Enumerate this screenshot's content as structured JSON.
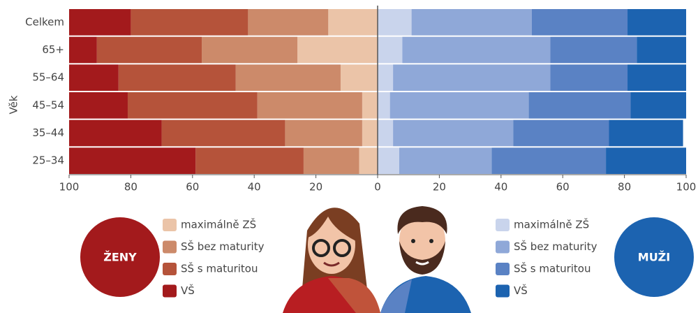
{
  "chart_data": {
    "type": "butterfly-stacked-bar",
    "y_label": "Věk",
    "categories": [
      "Celkem",
      "65+",
      "55–64",
      "45–54",
      "35–44",
      "25–34"
    ],
    "xlim": [
      0,
      100
    ],
    "xticks": [
      0,
      20,
      40,
      60,
      80,
      100
    ],
    "groups": [
      {
        "name": "ŽENY",
        "color": "#a31a1c",
        "side": "left",
        "series": [
          {
            "name": "maximálně ZŠ",
            "color": "#ebc4a8",
            "values": [
              16,
              26,
              12,
              5,
              5,
              6
            ]
          },
          {
            "name": "SŠ bez maturity",
            "color": "#cc8a6a",
            "values": [
              26,
              31,
              34,
              34,
              25,
              18
            ]
          },
          {
            "name": "SŠ s maturitou",
            "color": "#b5533a",
            "values": [
              38,
              34,
              38,
              42,
              40,
              35
            ]
          },
          {
            "name": "VŠ",
            "color": "#a31a1c",
            "values": [
              20,
              9,
              16,
              19,
              30,
              41
            ]
          }
        ]
      },
      {
        "name": "MUŽI",
        "color": "#1c63b0",
        "side": "right",
        "series": [
          {
            "name": "maximálně ZŠ",
            "color": "#c9d4ec",
            "values": [
              11,
              8,
              5,
              4,
              5,
              7
            ]
          },
          {
            "name": "SŠ bez maturity",
            "color": "#8fa8d8",
            "values": [
              39,
              48,
              51,
              45,
              39,
              30
            ]
          },
          {
            "name": "SŠ s maturitou",
            "color": "#5a82c4",
            "values": [
              31,
              28,
              25,
              33,
              31,
              37
            ]
          },
          {
            "name": "VŠ",
            "color": "#1c63b0",
            "values": [
              19,
              16,
              19,
              18,
              24,
              26
            ]
          }
        ]
      }
    ]
  }
}
